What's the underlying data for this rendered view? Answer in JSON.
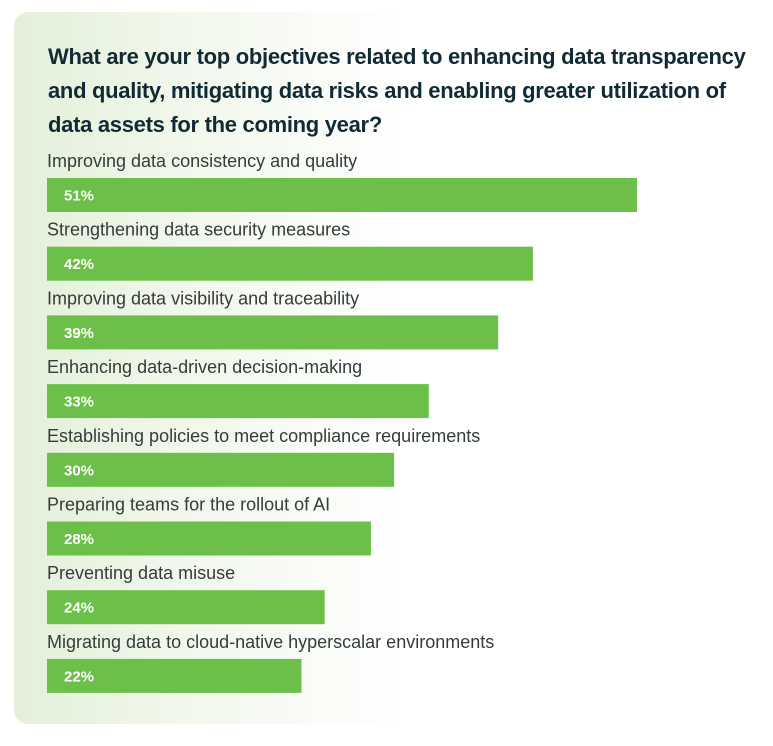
{
  "title": "What are your top objectives related to enhancing data transparency and quality, mitigating data risks and enabling greater utilization of data assets for the coming year?",
  "chart_data": {
    "type": "bar",
    "orientation": "horizontal",
    "title": "What are your top objectives related to enhancing data transparency and quality, mitigating data risks and enabling greater utilization of data assets for the coming year?",
    "categories": [
      "Improving data consistency and quality",
      "Strengthening data security measures",
      "Improving data visibility and traceability",
      "Enhancing data-driven decision-making",
      "Establishing policies to meet compliance requirements",
      "Preparing teams for the rollout of AI",
      "Preventing data misuse",
      "Migrating data to cloud-native hyperscalar environments"
    ],
    "values": [
      51,
      42,
      39,
      33,
      30,
      28,
      24,
      22
    ],
    "value_labels": [
      "51%",
      "42%",
      "39%",
      "33%",
      "30%",
      "28%",
      "24%",
      "22%"
    ],
    "unit": "%",
    "xlim": [
      0,
      100
    ],
    "grid": false,
    "legend": "none",
    "bar_color": "#6cc04a",
    "label_color": "#ffffff"
  }
}
